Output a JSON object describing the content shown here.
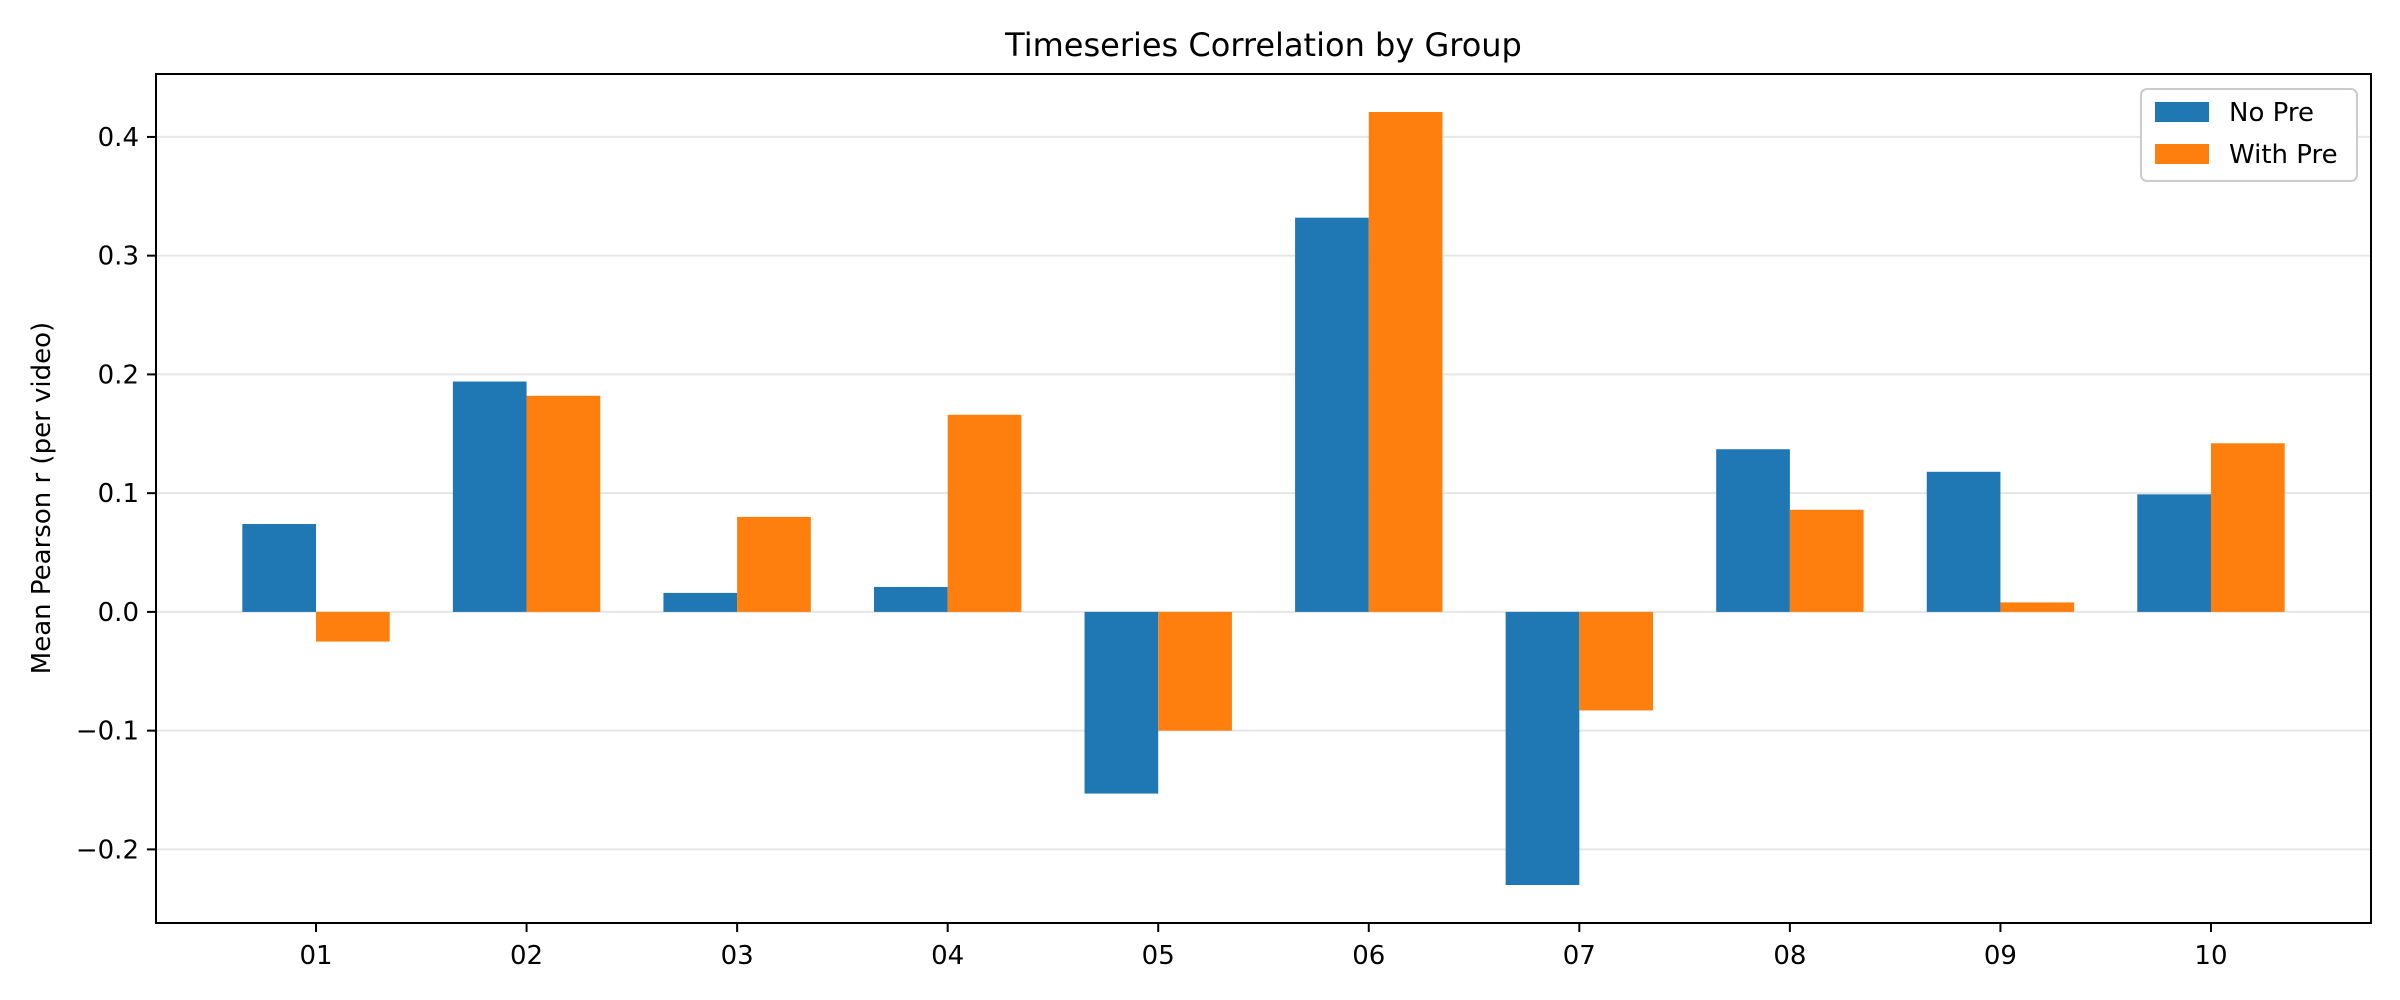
{
  "chart_data": {
    "type": "bar",
    "title": "Timeseries Correlation by Group",
    "xlabel": "",
    "ylabel": "Mean Pearson r (per video)",
    "categories": [
      "01",
      "02",
      "03",
      "04",
      "05",
      "06",
      "07",
      "08",
      "09",
      "10"
    ],
    "series": [
      {
        "name": "No Pre",
        "color": "#1f77b4",
        "values": [
          0.074,
          0.194,
          0.016,
          0.021,
          -0.153,
          0.332,
          -0.23,
          0.137,
          0.118,
          0.099
        ]
      },
      {
        "name": "With Pre",
        "color": "#ff7f0e",
        "values": [
          -0.025,
          0.182,
          0.08,
          0.166,
          -0.1,
          0.421,
          -0.083,
          0.086,
          0.008,
          0.142
        ]
      }
    ],
    "ylim": [
      -0.262,
      0.453
    ],
    "yticks": [
      -0.2,
      -0.1,
      0.0,
      0.1,
      0.2,
      0.3,
      0.4
    ],
    "ytick_labels": [
      "−0.2",
      "−0.1",
      "0.0",
      "0.1",
      "0.2",
      "0.3",
      "0.4"
    ],
    "grid": "horizontal",
    "legend_position": "top-right"
  }
}
